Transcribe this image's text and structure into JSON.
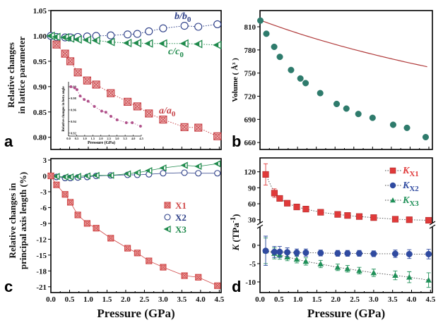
{
  "chart_data": [
    {
      "panel": "a",
      "type": "scatter",
      "ylabel_lines": [
        "Relative changes",
        "in lattice parameter"
      ],
      "ylim": [
        0.776,
        1.05
      ],
      "xlim": [
        0,
        4.55
      ],
      "yticks": [
        "0.80",
        "0.85",
        "0.90",
        "0.95",
        "1.00",
        "1.05"
      ],
      "series": [
        {
          "name": "a/a0",
          "label_main": "a/a",
          "label_sub": "0",
          "color": "#c8454a",
          "x": [
            0.15,
            0.38,
            0.52,
            0.72,
            0.97,
            1.21,
            1.6,
            2.05,
            2.31,
            2.62,
            3.0,
            3.57,
            3.94,
            4.45
          ],
          "y": [
            0.983,
            0.965,
            0.95,
            0.928,
            0.912,
            0.904,
            0.887,
            0.87,
            0.861,
            0.847,
            0.835,
            0.82,
            0.819,
            0.802
          ]
        },
        {
          "name": "b/b0",
          "label_main": "b/b",
          "label_sub": "0",
          "color": "#2a3c86",
          "x": [
            0,
            0.15,
            0.38,
            0.52,
            0.72,
            0.97,
            1.21,
            1.6,
            2.05,
            2.31,
            2.62,
            3.0,
            3.57,
            3.94,
            4.45
          ],
          "y": [
            1.0,
            0.998,
            0.997,
            0.997,
            0.998,
            0.999,
            1.0,
            1.001,
            1.003,
            1.004,
            1.009,
            1.015,
            1.02,
            1.018,
            1.023
          ]
        },
        {
          "name": "c/c0",
          "label_main": "c/c",
          "label_sub": "0",
          "color": "#1f8a4c",
          "x": [
            0,
            0.15,
            0.38,
            0.52,
            0.72,
            0.97,
            1.21,
            1.6,
            2.05,
            2.31,
            2.62,
            3.0,
            3.57,
            3.94,
            4.45
          ],
          "y": [
            1.0,
            0.998,
            0.997,
            0.995,
            0.993,
            0.992,
            0.991,
            0.988,
            0.986,
            0.986,
            0.985,
            0.985,
            0.985,
            0.984,
            0.982
          ]
        }
      ],
      "inset": {
        "type": "scatter",
        "xlabel": "Pressure (GPa)",
        "ylabel": "Relative changes in beta angle",
        "xlim": [
          0,
          4.5
        ],
        "ylim": [
          0.915,
          1.0085
        ],
        "xticks": [
          "0.0",
          "0.5",
          "1.0",
          "1.5",
          "2.0",
          "2.5",
          "3.0",
          "3.5",
          "4.0",
          "4.5"
        ],
        "yticks": [
          "0.92",
          "0.94",
          "0.96",
          "0.98",
          "1.00"
        ],
        "color": "#b0508a",
        "x": [
          0.15,
          0.38,
          0.52,
          0.72,
          0.97,
          1.21,
          1.6,
          2.05,
          2.31,
          2.62,
          3.0,
          3.57,
          3.94,
          4.45
        ],
        "y": [
          1.0,
          0.998,
          0.995,
          0.984,
          0.978,
          0.975,
          0.966,
          0.958,
          0.956,
          0.949,
          0.943,
          0.938,
          0.938,
          0.932
        ]
      }
    },
    {
      "panel": "b",
      "type": "scatter",
      "ylabel": "Volume ( Å³ )",
      "xlim": [
        -0.01,
        4.6
      ],
      "ylim": [
        651,
        831
      ],
      "yticks": [
        "660",
        "690",
        "720",
        "750",
        "780",
        "810"
      ],
      "marker_color": "#2e7b6c",
      "fit_color": "#b03a3a",
      "x": [
        0,
        0.16,
        0.37,
        0.52,
        0.82,
        1.07,
        1.21,
        1.6,
        2.04,
        2.3,
        2.62,
        3.0,
        3.55,
        3.92,
        4.42
      ],
      "y": [
        818,
        801,
        784,
        771,
        754,
        743,
        737,
        724,
        710,
        704,
        697,
        692,
        683,
        679,
        667
      ]
    },
    {
      "panel": "c",
      "type": "scatter",
      "xlabel": "Pressure (GPa)",
      "ylabel_lines": [
        "Relative changes in",
        "principal axis length (%)"
      ],
      "xlim": [
        0,
        4.55
      ],
      "ylim": [
        -22.1,
        3.27
      ],
      "xticks": [
        "0.0",
        "0.5",
        "1.0",
        "1.5",
        "2.0",
        "2.5",
        "3.0",
        "3.5",
        "4.0",
        "4.5"
      ],
      "yticks": [
        "-21",
        "-18",
        "-15",
        "-12",
        "-9",
        "-6",
        "-3",
        "0",
        "3"
      ],
      "legend_position": "center-right",
      "x": [
        0,
        0.15,
        0.38,
        0.52,
        0.72,
        0.97,
        1.21,
        1.6,
        2.05,
        2.31,
        2.62,
        3.0,
        3.57,
        3.94,
        4.45
      ],
      "series": [
        {
          "name": "X1",
          "color": "#d04848",
          "y": [
            0,
            -1.7,
            -3.5,
            -5.0,
            -7.4,
            -9.0,
            -9.9,
            -11.8,
            -13.7,
            -14.6,
            -16.1,
            -17.3,
            -18.9,
            -19.2,
            -20.8
          ]
        },
        {
          "name": "X2",
          "color": "#2a3c86",
          "y": [
            0,
            -0.2,
            -0.4,
            -0.4,
            -0.3,
            -0.2,
            0,
            0.1,
            0.2,
            0.2,
            0.3,
            0.5,
            0.6,
            0.5,
            0.5
          ]
        },
        {
          "name": "X3",
          "color": "#1f8a4c",
          "y": [
            0,
            -0.1,
            -0.2,
            -0.2,
            -0.1,
            0,
            0.1,
            0.1,
            0.4,
            0.6,
            1.0,
            1.5,
            2.0,
            1.8,
            2.3
          ]
        }
      ]
    },
    {
      "panel": "d",
      "type": "scatter",
      "xlabel": "Pressure (GPa)",
      "ylabel_main": "K",
      "ylabel_rest": " (TPa",
      "ylabel_sup": "-1",
      "ylabel_close": ")",
      "xlim": [
        0,
        4.55
      ],
      "ylim_upper": [
        23,
        146
      ],
      "ylim_lower": [
        -12.9,
        5
      ],
      "axis_break": true,
      "xticks": [
        "0.0",
        "0.5",
        "1.0",
        "1.5",
        "2.0",
        "2.5",
        "3.0",
        "3.5",
        "4.0",
        "4.5"
      ],
      "yticks_upper": [
        "30",
        "60",
        "90",
        "120"
      ],
      "yticks_lower": [
        "-10",
        "-5",
        "0"
      ],
      "legend_position": "top-right",
      "x": [
        0.15,
        0.38,
        0.52,
        0.72,
        0.97,
        1.21,
        1.6,
        2.05,
        2.31,
        2.62,
        3.0,
        3.57,
        3.94,
        4.45
      ],
      "series": [
        {
          "name": "KX1",
          "label_main": "K",
          "label_sub": "X1",
          "color": "#e03a3a",
          "axis": "upper",
          "y": [
            115,
            80,
            70,
            61,
            54,
            50,
            44,
            40,
            38,
            36,
            34,
            31,
            30,
            29
          ],
          "err": [
            20,
            8,
            5,
            3,
            3,
            2,
            2,
            2,
            2,
            2,
            2,
            2,
            2,
            2
          ]
        },
        {
          "name": "KX2",
          "label_main": "K",
          "label_sub": "X2",
          "color": "#2f4aa0",
          "axis": "lower",
          "y": [
            -1.5,
            -1.8,
            -1.8,
            -1.9,
            -2.0,
            -2.0,
            -2.1,
            -2.2,
            -2.2,
            -2.2,
            -2.3,
            -2.3,
            -2.4,
            -2.4
          ],
          "err": [
            4,
            1.5,
            1.5,
            1.2,
            1,
            1,
            0.8,
            0.8,
            0.8,
            0.8,
            0.8,
            1,
            1.2,
            1.3
          ]
        },
        {
          "name": "KX3",
          "label_main": "K",
          "label_sub": "X3",
          "color": "#1f9058",
          "axis": "lower",
          "y": [
            -1.5,
            -2.2,
            -2.6,
            -3.2,
            -3.8,
            -4.4,
            -5.1,
            -6.0,
            -6.4,
            -6.9,
            -7.5,
            -8.2,
            -8.7,
            -9.5
          ],
          "err": [
            3.5,
            1.5,
            1.2,
            1,
            1,
            1,
            1,
            0.9,
            0.9,
            0.9,
            1,
            1.2,
            1.5,
            2
          ]
        }
      ]
    }
  ],
  "panel_labels": [
    "a",
    "b",
    "c",
    "d"
  ]
}
